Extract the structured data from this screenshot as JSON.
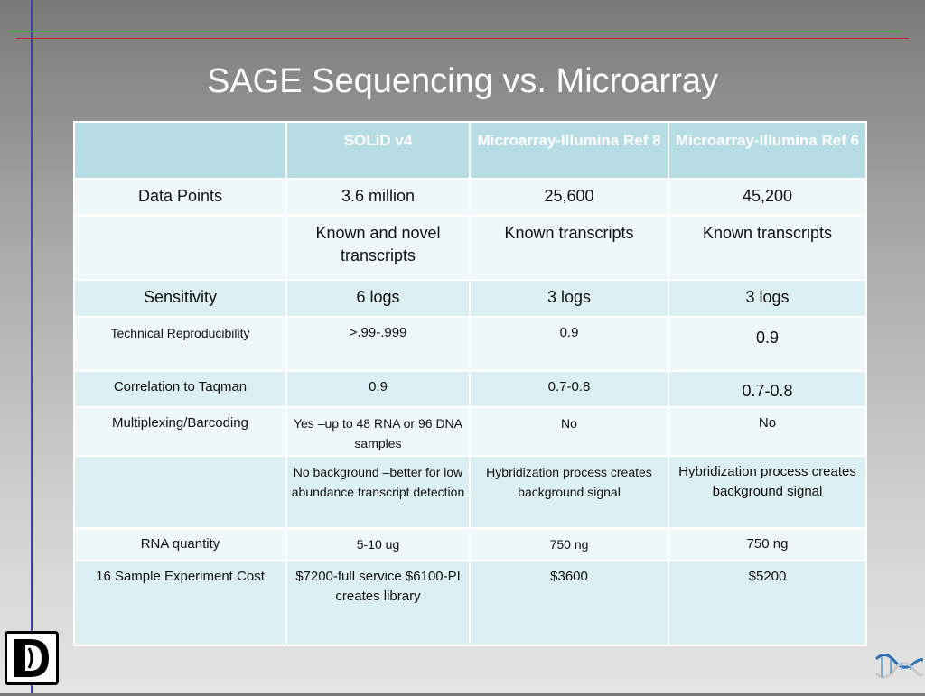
{
  "title": "SAGE Sequencing vs. Microarray",
  "table": {
    "headers": [
      "",
      "SOLiD v4",
      "Microarray-Illumina Ref 8",
      "Microarray-Illumina Ref 6"
    ],
    "rows": [
      [
        "Data Points",
        "3.6 million",
        "25,600",
        "45,200"
      ],
      [
        "",
        "Known and novel transcripts",
        "Known transcripts",
        "Known transcripts"
      ],
      [
        "Sensitivity",
        "6 logs",
        "3 logs",
        "3 logs"
      ],
      [
        "Technical Reproducibility",
        ">.99-.999",
        "0.9",
        "0.9"
      ],
      [
        "Correlation to Taqman",
        "0.9",
        "0.7-0.8",
        "0.7-0.8"
      ],
      [
        "Multiplexing/Barcoding",
        "Yes –up to 48 RNA or 96 DNA samples",
        "No",
        "No"
      ],
      [
        "",
        "No background –better for low abundance transcript detection",
        "Hybridization process creates background signal",
        "Hybridization process creates background signal"
      ],
      [
        "RNA quantity",
        "5-10 ug",
        "750 ng",
        "750 ng"
      ],
      [
        "16 Sample Experiment Cost",
        "$7200-full service $6100-PI creates library",
        "$3600",
        "$5200"
      ]
    ]
  },
  "colors": {
    "header_bg": "#b6dde4",
    "row_dark": "#dceff2",
    "row_light": "#eef7f9"
  },
  "icons": {
    "logo": "logo-icon",
    "dna": "dna-helix-icon"
  }
}
